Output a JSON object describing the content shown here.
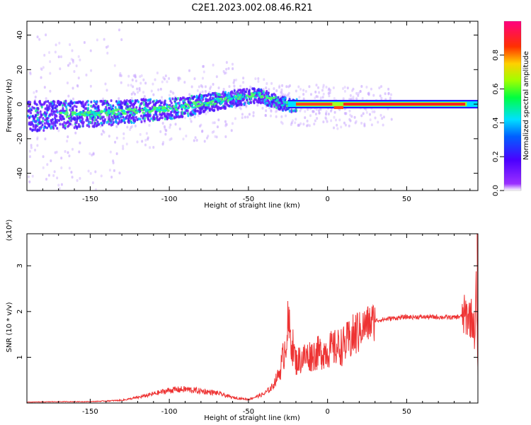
{
  "title": "C2E1.2023.002.08.46.R21",
  "colors": {
    "frame": "#000000",
    "snr_line": "#ee3333"
  },
  "chart_data": [
    {
      "type": "heatmap",
      "xlabel": "Height of straight line (km)",
      "ylabel": "Frequency (Hz)",
      "xlim": [
        -190,
        95
      ],
      "ylim": [
        -50,
        48
      ],
      "xticks": [
        -150,
        -100,
        -50,
        0,
        50
      ],
      "yticks": [
        -40,
        -20,
        0,
        20,
        40
      ],
      "grid": false,
      "colormap": "rainbow (purple → blue → cyan → green → yellow → red → magenta)",
      "colorbar": {
        "label": "Normalized spectral amplitude",
        "range": [
          0.0,
          1.0
        ],
        "ticks": [
          0.0,
          0.2,
          0.4,
          0.6,
          0.8
        ]
      },
      "ridge_center_hz": [
        {
          "x": -190,
          "y": -6
        },
        {
          "x": -150,
          "y": -5
        },
        {
          "x": -120,
          "y": -3
        },
        {
          "x": -100,
          "y": -2
        },
        {
          "x": -80,
          "y": 1
        },
        {
          "x": -60,
          "y": 4
        },
        {
          "x": -45,
          "y": 6
        },
        {
          "x": -35,
          "y": 3
        },
        {
          "x": -25,
          "y": 0
        },
        {
          "x": 0,
          "y": 0
        },
        {
          "x": 5,
          "y": -2
        },
        {
          "x": 10,
          "y": 0
        },
        {
          "x": 50,
          "y": 0
        },
        {
          "x": 95,
          "y": 0
        }
      ]
    },
    {
      "type": "line",
      "xlabel": "Height of straight line (km)",
      "ylabel": "SNR (10 * v/v)",
      "y_multiplier": "(x10⁴)",
      "xlim": [
        -190,
        95
      ],
      "ylim": [
        0,
        3.7
      ],
      "xticks": [
        -150,
        -100,
        -50,
        0,
        50
      ],
      "yticks": [
        1,
        2,
        3
      ],
      "grid": false,
      "series": [
        {
          "x": [
            -190,
            -170,
            -150,
            -130,
            -120,
            -110,
            -100,
            -90,
            -80,
            -70,
            -60,
            -50,
            -40,
            -35,
            -30,
            -27,
            -25,
            -23,
            -20,
            -15,
            -10,
            -5,
            0,
            5,
            10,
            15,
            20,
            25,
            30,
            40,
            50,
            60,
            70,
            80,
            85,
            90,
            92,
            93,
            94,
            95
          ],
          "y": [
            0.02,
            0.03,
            0.03,
            0.06,
            0.12,
            0.2,
            0.28,
            0.3,
            0.26,
            0.22,
            0.12,
            0.08,
            0.2,
            0.35,
            0.7,
            1.2,
            1.7,
            1.4,
            0.9,
            1.0,
            1.05,
            1.1,
            1.15,
            1.2,
            1.25,
            1.4,
            1.6,
            1.72,
            1.8,
            1.85,
            1.88,
            1.88,
            1.88,
            1.87,
            1.9,
            1.9,
            1.8,
            1.5,
            2.5,
            0.6
          ]
        }
      ]
    }
  ]
}
